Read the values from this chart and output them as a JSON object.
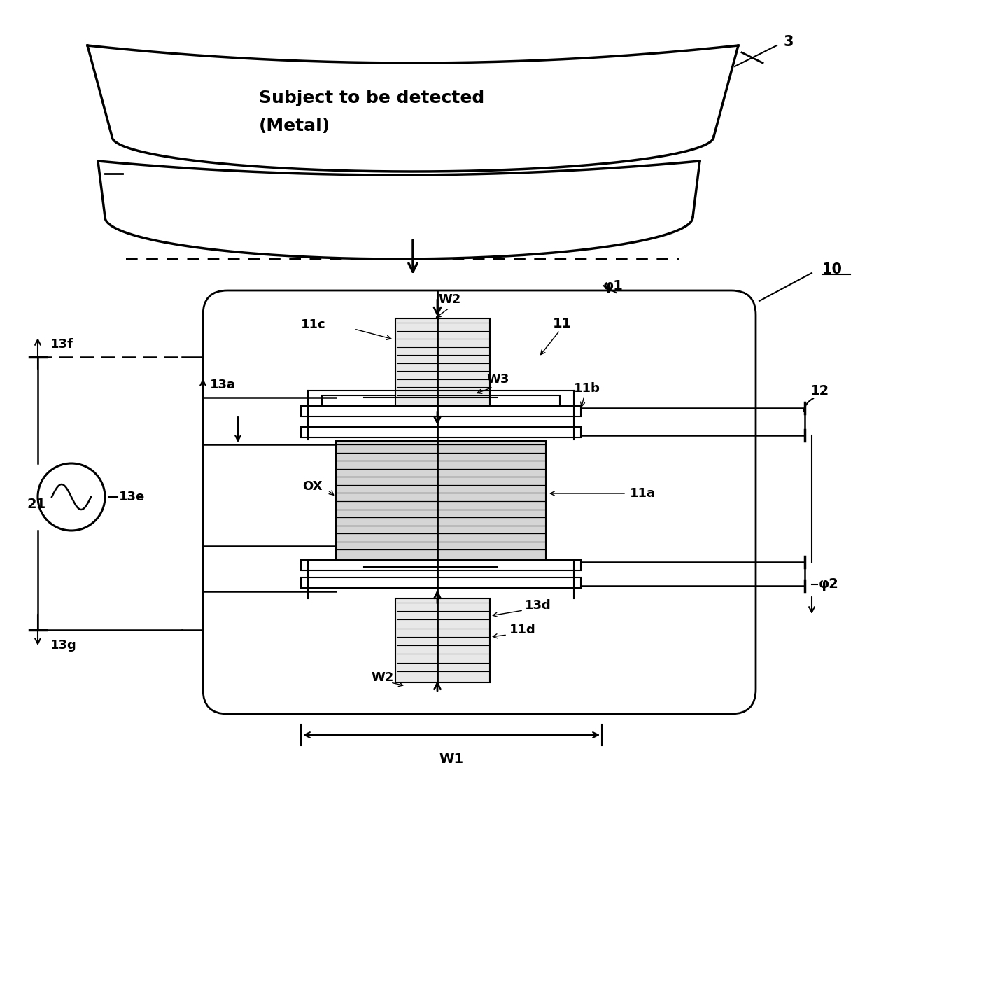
{
  "bg_color": "#ffffff",
  "fig_width": 14.39,
  "fig_height": 14.2,
  "labels": {
    "subject_line1": "Subject to be detected",
    "subject_line2": "(Metal)",
    "ref3": "3",
    "ref10": "10",
    "ref11": "11",
    "ref11a": "11a",
    "ref11b": "11b",
    "ref11c": "11c",
    "ref11d": "11d",
    "ref12": "12",
    "ref13a": "13a",
    "ref13d": "13d",
    "ref13e": "13e",
    "ref13f": "13f",
    "ref13g": "13g",
    "ref21": "21",
    "refOX": "OX",
    "refW1": "W1",
    "refW2top": "W2",
    "refW2bot": "W2",
    "refW3": "W3",
    "refPhi1": "φ1",
    "refPhi2": "φ2"
  }
}
